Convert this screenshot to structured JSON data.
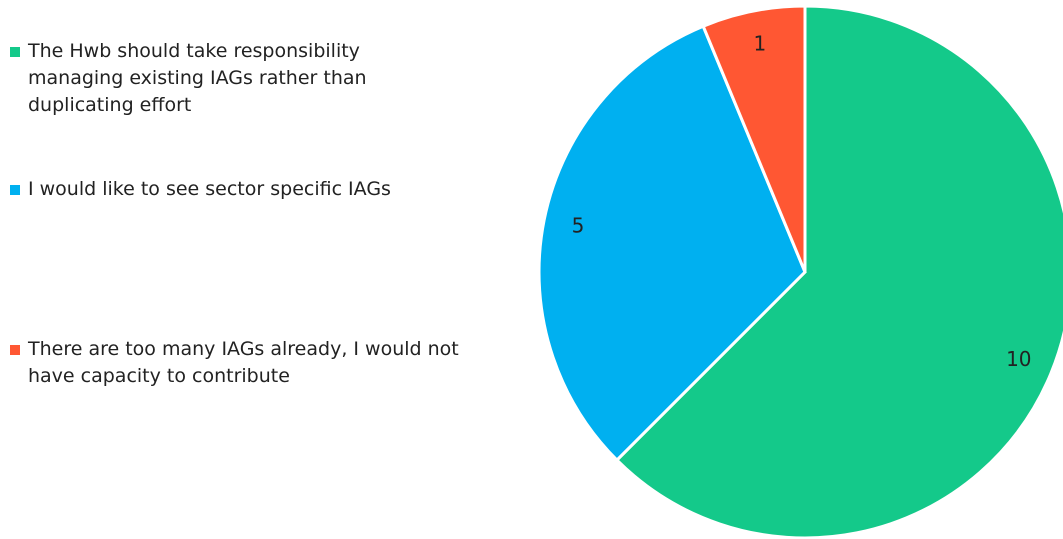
{
  "chart_data": {
    "type": "pie",
    "categories": [
      "The Hwb should take responsibility managing existing IAGs rather than duplicating effort",
      "I would like to see sector specific IAGs",
      "There are too many IAGs already, I would not have capacity to contribute"
    ],
    "values": [
      10,
      5,
      1
    ],
    "colors": [
      "#14c98a",
      "#00b0f0",
      "#ff5733"
    ],
    "legend": "left"
  }
}
